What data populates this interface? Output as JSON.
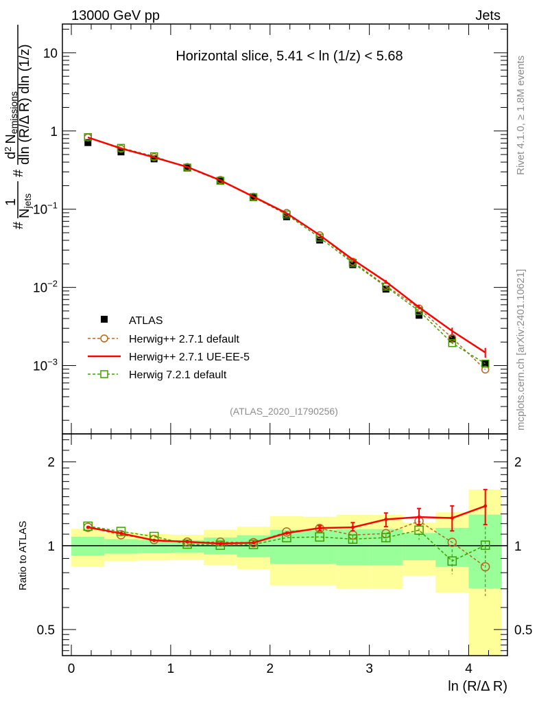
{
  "header": {
    "left": "13000 GeV pp",
    "right": "Jets"
  },
  "side_text": {
    "rivet": "Rivet 4.1.0, ≥ 1.8M events",
    "mcplots": "mcplots.cern.ch [arXiv:2401.10621]"
  },
  "analysis_id": "(ATLAS_2020_I1790256)",
  "chart_data": [
    {
      "type": "scatter",
      "title": "Horizontal slice, 5.41 < ln (1/z) < 5.68",
      "xlabel": "ln (R/Δ R)",
      "ylabel": "#1/N_jets # d² N_emissions / dln (R/Δ R) dln (1/z)",
      "ylabel_parts": {
        "hash": "#",
        "one": "1",
        "njets_N": "N",
        "njets_sub": "jets",
        "d2": "d",
        "d2_sup": "2",
        "N": "N",
        "N_sub": "emissions",
        "denominator": "dln (R/Δ R) dln (1/z)"
      },
      "yscale": "log",
      "xlim": [
        -0.09,
        4.39
      ],
      "ylim": [
        0.000134,
        23.3
      ],
      "xticks": [
        0,
        1,
        2,
        3,
        4
      ],
      "yticks": [
        {
          "v": 10,
          "label": "10"
        },
        {
          "v": 1,
          "label": "1"
        },
        {
          "v": 0.1,
          "label": "10",
          "exp": "−1"
        },
        {
          "v": 0.01,
          "label": "10",
          "exp": "−2"
        },
        {
          "v": 0.001,
          "label": "10",
          "exp": "−3"
        }
      ],
      "x": [
        0.167,
        0.5,
        0.833,
        1.167,
        1.5,
        1.833,
        2.167,
        2.5,
        2.833,
        3.167,
        3.5,
        3.833,
        4.167
      ],
      "legend_position": "bottom-left",
      "series": [
        {
          "name": "ATLAS",
          "style": "data",
          "color": "#000000",
          "values": [
            0.71,
            0.54,
            0.44,
            0.336,
            0.23,
            0.141,
            0.08,
            0.0403,
            0.0195,
            0.0095,
            0.0044,
            0.0022,
            0.00106
          ]
        },
        {
          "name": "Herwig++ 2.7.1 default",
          "style": "circle-dashed",
          "color": "#b8651b",
          "values": [
            0.826,
            0.591,
            0.463,
            0.346,
            0.237,
            0.1445,
            0.0896,
            0.0465,
            0.0213,
            0.0105,
            0.00539,
            0.00226,
            0.00089
          ]
        },
        {
          "name": "Herwig++ 2.7.1 UE-EE-5",
          "style": "line",
          "color": "#ff0000",
          "values": [
            0.826,
            0.598,
            0.46,
            0.347,
            0.234,
            0.1445,
            0.0888,
            0.0466,
            0.0227,
            0.0118,
            0.00557,
            0.00277,
            0.00147
          ]
        },
        {
          "name": "Herwig 7.2.1 default",
          "style": "square-dashed",
          "color": "#3e9c00",
          "values": [
            0.834,
            0.608,
            0.475,
            0.34,
            0.231,
            0.1424,
            0.0855,
            0.0433,
            0.0206,
            0.0102,
            0.005,
            0.00194,
            0.00106
          ]
        }
      ]
    },
    {
      "type": "line",
      "ylabel": "Ratio to ATLAS",
      "xlabel": "ln (R/Δ R)",
      "yscale": "log",
      "ylim": [
        0.403,
        2.52
      ],
      "yticks": [
        0.5,
        1,
        2
      ],
      "ytick_labels": [
        "0.5",
        "1",
        "2"
      ],
      "xtick_labels": [
        "0",
        "1",
        "2",
        "3",
        "4"
      ],
      "x": [
        0.167,
        0.5,
        0.833,
        1.167,
        1.5,
        1.833,
        2.167,
        2.5,
        2.833,
        3.167,
        3.5,
        3.833,
        4.167
      ],
      "bin_edges": [
        0,
        0.333,
        0.667,
        1,
        1.333,
        1.667,
        2,
        2.333,
        2.667,
        3,
        3.333,
        3.667,
        4,
        4.333
      ],
      "band_total": {
        "color": "#ffff99",
        "low": [
          0.843,
          0.881,
          0.885,
          0.89,
          0.852,
          0.824,
          0.72,
          0.72,
          0.7,
          0.7,
          0.78,
          0.679,
          0.4
        ],
        "high": [
          1.15,
          1.116,
          1.1,
          1.095,
          1.142,
          1.17,
          1.277,
          1.27,
          1.29,
          1.29,
          1.21,
          1.318,
          1.59
        ]
      },
      "band_stat": {
        "color": "#99ff99",
        "low": [
          0.922,
          0.936,
          0.94,
          0.945,
          0.93,
          0.91,
          0.86,
          0.86,
          0.85,
          0.85,
          0.887,
          0.839,
          0.703
        ],
        "high": [
          1.077,
          1.056,
          1.05,
          1.047,
          1.07,
          1.09,
          1.14,
          1.14,
          1.147,
          1.147,
          1.11,
          1.159,
          1.293
        ]
      },
      "series": [
        {
          "name": "Herwig++ 2.7.1 default",
          "color": "#b8651b",
          "values": [
            1.164,
            1.095,
            1.052,
            1.03,
            1.03,
            1.025,
            1.12,
            1.153,
            1.093,
            1.105,
            1.225,
            1.028,
            0.84
          ],
          "err_low": [
            0,
            0,
            0,
            0,
            0,
            0,
            0,
            0,
            0,
            0,
            0,
            0,
            0.66
          ],
          "err_high": [
            0,
            0,
            0,
            0,
            0,
            0,
            0,
            0,
            0,
            0,
            0,
            0,
            1.0
          ]
        },
        {
          "name": "Herwig++ 2.7.1 UE-EE-5",
          "color": "#ff0000",
          "values": [
            1.164,
            1.108,
            1.045,
            1.033,
            1.017,
            1.025,
            1.11,
            1.157,
            1.164,
            1.243,
            1.267,
            1.257,
            1.388
          ],
          "err_low": [
            0,
            0,
            0,
            0,
            0,
            0,
            0,
            1.13,
            1.13,
            1.17,
            1.19,
            1.13,
            1.19
          ],
          "err_high": [
            0,
            0,
            0,
            0,
            0,
            0,
            0,
            1.18,
            1.21,
            1.31,
            1.36,
            1.39,
            1.59
          ]
        },
        {
          "name": "Herwig 7.2.1 default",
          "color": "#3e9c00",
          "values": [
            1.175,
            1.125,
            1.079,
            1.013,
            1.004,
            1.01,
            1.069,
            1.075,
            1.056,
            1.069,
            1.137,
            0.881,
            1.004
          ],
          "err_low": [
            0,
            0,
            0,
            0,
            0,
            0,
            0,
            0,
            1.02,
            1.02,
            1.05,
            0.79,
            0.88
          ],
          "err_high": [
            0,
            0,
            0,
            0,
            0,
            0,
            0,
            0,
            1.09,
            1.1,
            1.2,
            0.97,
            1.17
          ]
        }
      ]
    }
  ]
}
